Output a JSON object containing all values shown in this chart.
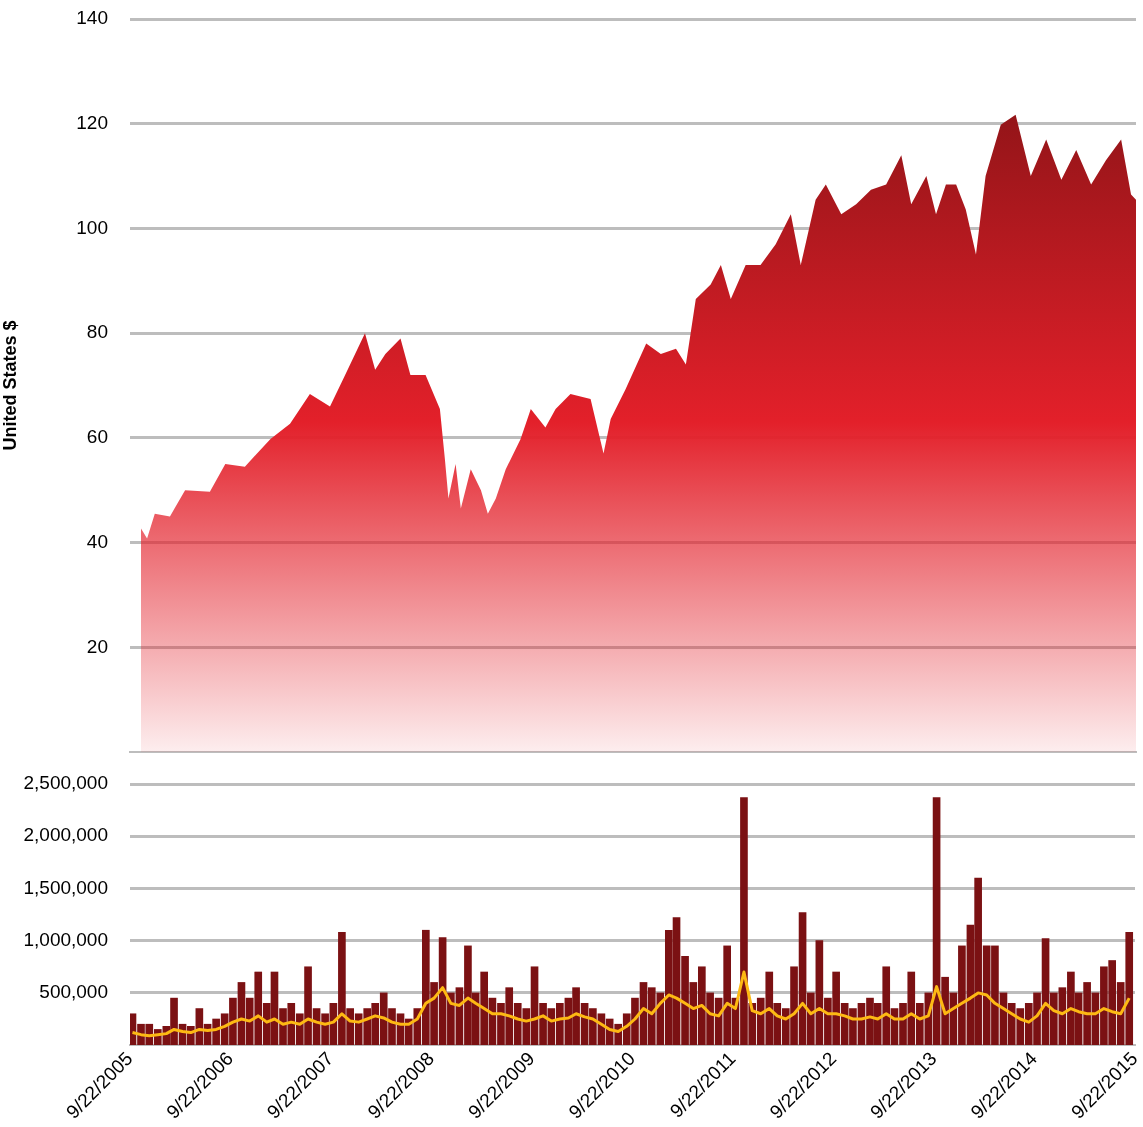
{
  "chart_data": [
    {
      "type": "area",
      "ylabel": "United States $",
      "color": "#e3202a",
      "grid": "y",
      "tick_labels": "y",
      "xlim": [
        "2005-09-22",
        "2015-09-22"
      ],
      "ylim": [
        0,
        140
      ],
      "yticks": [
        20,
        40,
        60,
        80,
        100,
        120,
        140
      ],
      "x": [
        "2005-11-01",
        "2005-11-23",
        "2005-12-21",
        "2006-02-14",
        "2006-04-10",
        "2006-07-09",
        "2006-09-03",
        "2006-11-13",
        "2007-02-14",
        "2007-04-26",
        "2007-07-07",
        "2007-09-18",
        "2007-11-12",
        "2008-01-23",
        "2008-02-29",
        "2008-04-06",
        "2008-05-31",
        "2008-07-06",
        "2008-08-30",
        "2008-10-21",
        "2008-11-08",
        "2008-11-21",
        "2008-12-17",
        "2009-01-05",
        "2009-02-10",
        "2009-03-19",
        "2009-04-13",
        "2009-05-12",
        "2009-06-17",
        "2009-08-10",
        "2009-09-16",
        "2009-11-08",
        "2009-12-15",
        "2010-02-07",
        "2010-04-21",
        "2010-06-07",
        "2010-07-03",
        "2010-08-26",
        "2010-11-09",
        "2011-01-01",
        "2011-02-25",
        "2011-04-02",
        "2011-05-08",
        "2011-07-01",
        "2011-08-07",
        "2011-09-12",
        "2011-11-05",
        "2011-12-29",
        "2012-02-22",
        "2012-04-17",
        "2012-05-23",
        "2012-07-16",
        "2012-08-22",
        "2012-10-17",
        "2012-12-10",
        "2013-02-02",
        "2013-03-29",
        "2013-05-23",
        "2013-06-28",
        "2013-08-22",
        "2013-09-26",
        "2013-11-01",
        "2013-12-08",
        "2014-01-12",
        "2014-02-18",
        "2014-03-25",
        "2014-05-19",
        "2014-07-12",
        "2014-09-05",
        "2014-10-31",
        "2014-12-25",
        "2015-02-17",
        "2015-04-12",
        "2015-06-05",
        "2015-07-30",
        "2015-09-04",
        "2015-09-22"
      ],
      "values": [
        42.7,
        40.8,
        45.5,
        45,
        50,
        49.7,
        55,
        54.5,
        59.8,
        62.7,
        68.4,
        66,
        72,
        80,
        73,
        76,
        79,
        72,
        72,
        65.5,
        56,
        48.4,
        55,
        46.5,
        54,
        50,
        45.5,
        48.4,
        54,
        59.8,
        65.5,
        62,
        65.5,
        68.4,
        67.4,
        57,
        63.6,
        69.3,
        78,
        76,
        77,
        74,
        86.5,
        89.3,
        93,
        86.5,
        93,
        93,
        97,
        102.7,
        93,
        105.5,
        108.4,
        102.7,
        104.6,
        107.4,
        108.4,
        114,
        104.6,
        110,
        102.7,
        108.4,
        108.4,
        103.6,
        95,
        110,
        119.8,
        121.7,
        110,
        117,
        109.3,
        115,
        108.4,
        113,
        117,
        106.5,
        105.5
      ]
    },
    {
      "type": "bar",
      "grid": "y",
      "xlim": [
        "2005-09-22",
        "2015-09-22"
      ],
      "xticks": [
        {
          "value": "2005-09-22",
          "label": "9/22/2005"
        },
        {
          "value": "2006-09-22",
          "label": "9/22/2006"
        },
        {
          "value": "2007-09-22",
          "label": "9/22/2007"
        },
        {
          "value": "2008-09-22",
          "label": "9/22/2008"
        },
        {
          "value": "2009-09-22",
          "label": "9/22/2009"
        },
        {
          "value": "2010-09-22",
          "label": "9/22/2010"
        },
        {
          "value": "2011-09-22",
          "label": "9/22/2011"
        },
        {
          "value": "2012-09-22",
          "label": "9/22/2012"
        },
        {
          "value": "2013-09-22",
          "label": "9/22/2013"
        },
        {
          "value": "2014-09-22",
          "label": "9/22/2014"
        },
        {
          "value": "2015-09-22",
          "label": "9/22/2015"
        }
      ],
      "ylim": [
        0,
        2500000
      ],
      "yticks": [
        {
          "value": 500000,
          "label": "500,000"
        },
        {
          "value": 1000000,
          "label": "1,000,000"
        },
        {
          "value": 1500000,
          "label": "1,500,000"
        },
        {
          "value": 2000000,
          "label": "2,000,000"
        },
        {
          "value": 2500000,
          "label": "2,500,000"
        }
      ],
      "x": [
        "2005-10",
        "2005-11",
        "2005-12",
        "2006-01",
        "2006-02",
        "2006-03",
        "2006-04",
        "2006-05",
        "2006-06",
        "2006-07",
        "2006-08",
        "2006-09",
        "2006-10",
        "2006-11",
        "2006-12",
        "2007-01",
        "2007-02",
        "2007-03",
        "2007-04",
        "2007-05",
        "2007-06",
        "2007-07",
        "2007-08",
        "2007-09",
        "2007-10",
        "2007-11",
        "2007-12",
        "2008-01",
        "2008-02",
        "2008-03",
        "2008-04",
        "2008-05",
        "2008-06",
        "2008-07",
        "2008-08",
        "2008-09",
        "2008-10",
        "2008-11",
        "2008-12",
        "2009-01",
        "2009-02",
        "2009-03",
        "2009-04",
        "2009-05",
        "2009-06",
        "2009-07",
        "2009-08",
        "2009-09",
        "2009-10",
        "2009-11",
        "2009-12",
        "2010-01",
        "2010-02",
        "2010-03",
        "2010-04",
        "2010-05",
        "2010-06",
        "2010-07",
        "2010-08",
        "2010-09",
        "2010-10",
        "2010-11",
        "2010-12",
        "2011-01",
        "2011-02",
        "2011-03",
        "2011-04",
        "2011-05",
        "2011-06",
        "2011-07",
        "2011-08",
        "2011-09",
        "2011-10",
        "2011-11",
        "2011-12",
        "2012-01",
        "2012-02",
        "2012-03",
        "2012-04",
        "2012-05",
        "2012-06",
        "2012-07",
        "2012-08",
        "2012-09",
        "2012-10",
        "2012-11",
        "2012-12",
        "2013-01",
        "2013-02",
        "2013-03",
        "2013-04",
        "2013-05",
        "2013-06",
        "2013-07",
        "2013-08",
        "2013-09",
        "2013-10",
        "2013-11",
        "2013-12",
        "2014-01",
        "2014-02",
        "2014-03",
        "2014-04",
        "2014-05",
        "2014-06",
        "2014-07",
        "2014-08",
        "2014-09",
        "2014-10",
        "2014-11",
        "2014-12",
        "2015-01",
        "2015-02",
        "2015-03",
        "2015-04",
        "2015-05",
        "2015-06",
        "2015-07",
        "2015-08",
        "2015-09"
      ],
      "series": [
        {
          "type": "bar",
          "color": "#7b1113",
          "values": [
            300000,
            200000,
            200000,
            150000,
            180000,
            450000,
            200000,
            180000,
            350000,
            200000,
            250000,
            300000,
            450000,
            600000,
            450000,
            700000,
            400000,
            700000,
            350000,
            400000,
            300000,
            750000,
            350000,
            300000,
            400000,
            1080000,
            350000,
            300000,
            350000,
            400000,
            500000,
            350000,
            300000,
            250000,
            350000,
            1100000,
            600000,
            1030000,
            500000,
            550000,
            950000,
            500000,
            700000,
            450000,
            400000,
            550000,
            400000,
            350000,
            750000,
            400000,
            350000,
            400000,
            450000,
            550000,
            400000,
            350000,
            300000,
            250000,
            200000,
            300000,
            450000,
            600000,
            550000,
            500000,
            1100000,
            1220000,
            850000,
            600000,
            750000,
            500000,
            450000,
            950000,
            450000,
            2370000,
            400000,
            450000,
            700000,
            400000,
            350000,
            750000,
            1270000,
            500000,
            1000000,
            450000,
            700000,
            400000,
            350000,
            400000,
            450000,
            400000,
            750000,
            350000,
            400000,
            700000,
            400000,
            500000,
            2370000,
            650000,
            500000,
            950000,
            1150000,
            1600000,
            950000,
            950000,
            500000,
            400000,
            350000,
            400000,
            500000,
            1020000,
            500000,
            550000,
            700000,
            500000,
            600000,
            500000,
            750000,
            810000,
            600000,
            1080000
          ]
        },
        {
          "type": "line",
          "color": "#fdb913",
          "values": [
            120000,
            100000,
            90000,
            100000,
            110000,
            150000,
            130000,
            120000,
            150000,
            140000,
            150000,
            180000,
            220000,
            250000,
            230000,
            280000,
            220000,
            250000,
            200000,
            220000,
            200000,
            250000,
            220000,
            200000,
            220000,
            300000,
            230000,
            220000,
            250000,
            280000,
            260000,
            220000,
            200000,
            200000,
            250000,
            400000,
            450000,
            550000,
            400000,
            380000,
            450000,
            400000,
            350000,
            300000,
            300000,
            280000,
            250000,
            230000,
            250000,
            280000,
            230000,
            250000,
            260000,
            300000,
            270000,
            250000,
            200000,
            150000,
            130000,
            180000,
            250000,
            350000,
            300000,
            400000,
            480000,
            450000,
            400000,
            350000,
            380000,
            300000,
            280000,
            400000,
            350000,
            700000,
            330000,
            300000,
            350000,
            280000,
            250000,
            300000,
            400000,
            300000,
            350000,
            300000,
            300000,
            280000,
            250000,
            250000,
            270000,
            250000,
            300000,
            250000,
            250000,
            300000,
            250000,
            280000,
            560000,
            300000,
            350000,
            400000,
            450000,
            500000,
            480000,
            400000,
            350000,
            300000,
            250000,
            220000,
            280000,
            400000,
            330000,
            300000,
            350000,
            320000,
            300000,
            300000,
            350000,
            320000,
            300000,
            450000
          ]
        }
      ]
    }
  ]
}
